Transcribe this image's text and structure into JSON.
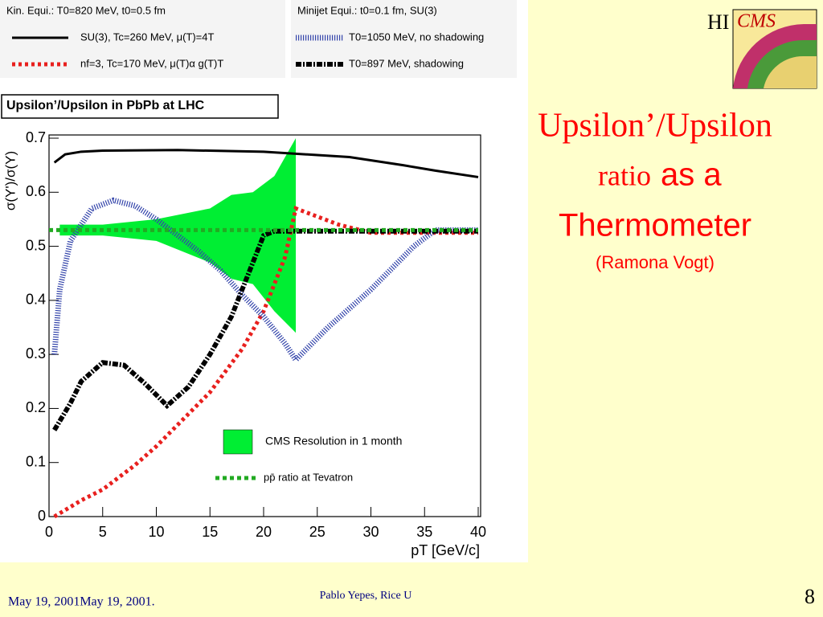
{
  "slide": {
    "title_line1": "Upsilon’/Upsilon",
    "title_ratio": "ratio",
    "title_asa": "as a",
    "title_line3": "Thermometer",
    "subtitle": "(Ramona Vogt)",
    "footer_date": "May 19, 2001May 19, 2001.",
    "footer_author": "Pablo Yepes, Rice U",
    "page_number": "8",
    "logo_hi": "HI",
    "logo_cms": "CMS"
  },
  "chart_data": {
    "type": "line",
    "title": "Upsilon’/Upsilon in PbPb at LHC",
    "xlabel": "pT [GeV/c]",
    "ylabel": "σ(Υ')/σ(Υ)",
    "legend_titles": [
      "Kin. Equi.: T0=820 MeV, t0=0.5 fm",
      "Minijet Equi.: t0=0.1 fm, SU(3)"
    ],
    "xlim": [
      0,
      40
    ],
    "ylim": [
      0,
      0.7
    ],
    "xticks": [
      0,
      5,
      10,
      15,
      20,
      25,
      30,
      35,
      40
    ],
    "yticks": [
      0,
      0.1,
      0.2,
      0.3,
      0.4,
      0.5,
      0.6,
      0.7
    ],
    "band": {
      "name": "CMS Resolution in 1 month",
      "color": "#00ee33",
      "x": [
        1,
        5,
        10,
        15,
        17,
        19,
        21,
        23
      ],
      "upper": [
        0.54,
        0.54,
        0.55,
        0.57,
        0.595,
        0.6,
        0.63,
        0.7
      ],
      "lower": [
        0.52,
        0.52,
        0.51,
        0.47,
        0.44,
        0.43,
        0.38,
        0.34
      ]
    },
    "series": [
      {
        "name": "SU(3), Tc=260 MeV,  μ(T)=4T",
        "color": "#000000",
        "style": "solid",
        "x": [
          0.5,
          1.5,
          3,
          5,
          12,
          20,
          28,
          33,
          36,
          40
        ],
        "values": [
          0.655,
          0.67,
          0.675,
          0.677,
          0.678,
          0.675,
          0.665,
          0.65,
          0.64,
          0.628
        ]
      },
      {
        "name": "nf=3, Tc=170 MeV,  μ(T)α g(T)T",
        "color": "#e8201e",
        "style": "dotted",
        "x": [
          0.5,
          3,
          5,
          8,
          10,
          13,
          15,
          18,
          20,
          22,
          23,
          25,
          27,
          30,
          35,
          40
        ],
        "values": [
          0.0,
          0.03,
          0.05,
          0.095,
          0.13,
          0.19,
          0.23,
          0.31,
          0.38,
          0.48,
          0.57,
          0.555,
          0.54,
          0.525,
          0.525,
          0.525
        ]
      },
      {
        "name": "T0=1050 MeV, no shadowing",
        "color": "#3344aa",
        "style": "hatched",
        "x": [
          0.5,
          1,
          2,
          4,
          6,
          8,
          10,
          12,
          14,
          16,
          18,
          20,
          22,
          23,
          24,
          26,
          28,
          30,
          32,
          34,
          36,
          38,
          40
        ],
        "values": [
          0.3,
          0.42,
          0.51,
          0.57,
          0.585,
          0.575,
          0.55,
          0.52,
          0.49,
          0.455,
          0.41,
          0.37,
          0.32,
          0.29,
          0.31,
          0.35,
          0.385,
          0.42,
          0.46,
          0.5,
          0.53,
          0.53,
          0.53
        ]
      },
      {
        "name": "T0=897 MeV, shadowing",
        "color": "#000000",
        "style": "dashdot",
        "x": [
          0.5,
          2,
          3,
          5,
          7,
          9,
          11,
          13,
          15,
          17,
          19,
          20,
          21,
          25,
          30,
          35,
          40
        ],
        "values": [
          0.16,
          0.21,
          0.25,
          0.285,
          0.28,
          0.245,
          0.205,
          0.24,
          0.3,
          0.37,
          0.47,
          0.52,
          0.528,
          0.528,
          0.528,
          0.528,
          0.528
        ]
      },
      {
        "name": "pp̄ ratio at Tevatron",
        "color": "#22aa22",
        "style": "greendot",
        "x": [
          0,
          40
        ],
        "values": [
          0.53,
          0.53
        ]
      }
    ]
  }
}
